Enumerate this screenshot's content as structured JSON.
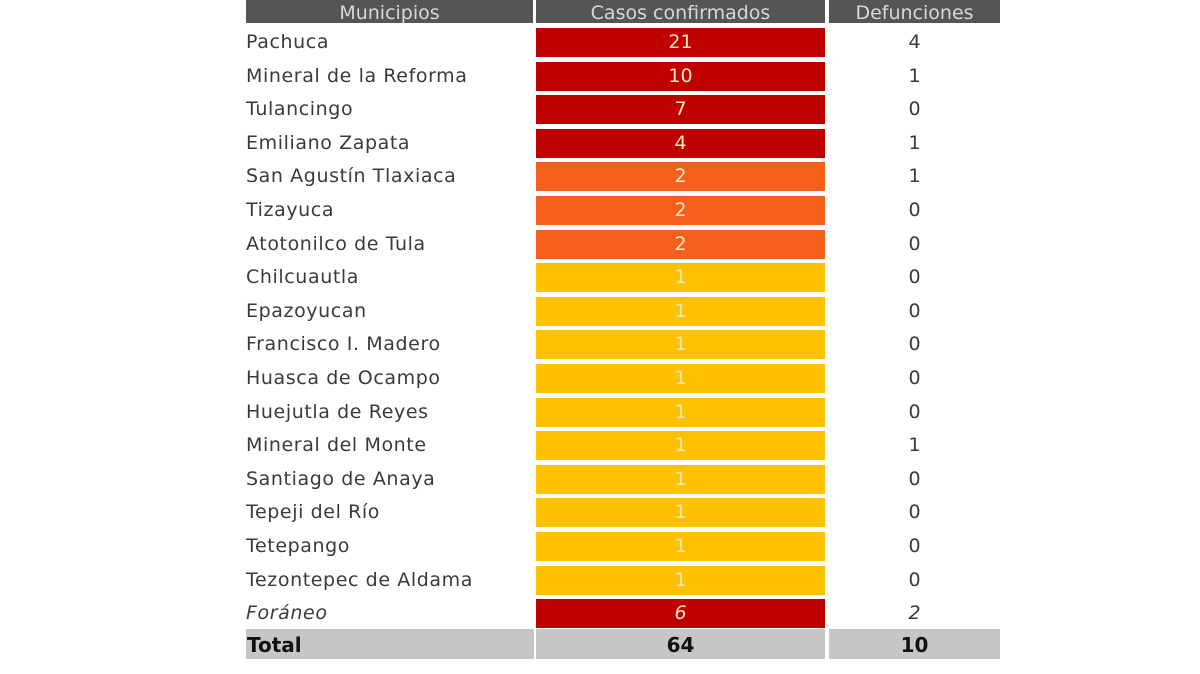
{
  "headers": {
    "municipio": "Municipios",
    "casos": "Casos confirmados",
    "defunciones": "Defunciones"
  },
  "colors": {
    "red": "#c00000",
    "orange": "#f4601c",
    "yellow": "#ffc000"
  },
  "rows": [
    {
      "name": "Pachuca",
      "cases": "21",
      "deaths": "4",
      "level": "red"
    },
    {
      "name": "Mineral de la Reforma",
      "cases": "10",
      "deaths": "1",
      "level": "red"
    },
    {
      "name": "Tulancingo",
      "cases": "7",
      "deaths": "0",
      "level": "red"
    },
    {
      "name": "Emiliano Zapata",
      "cases": "4",
      "deaths": "1",
      "level": "red"
    },
    {
      "name": "San Agustín Tlaxiaca",
      "cases": "2",
      "deaths": "1",
      "level": "orange"
    },
    {
      "name": "Tizayuca",
      "cases": "2",
      "deaths": "0",
      "level": "orange"
    },
    {
      "name": "Atotonilco de Tula",
      "cases": "2",
      "deaths": "0",
      "level": "orange"
    },
    {
      "name": "Chilcuautla",
      "cases": "1",
      "deaths": "0",
      "level": "yellow"
    },
    {
      "name": "Epazoyucan",
      "cases": "1",
      "deaths": "0",
      "level": "yellow"
    },
    {
      "name": "Francisco I. Madero",
      "cases": "1",
      "deaths": "0",
      "level": "yellow"
    },
    {
      "name": "Huasca de Ocampo",
      "cases": "1",
      "deaths": "0",
      "level": "yellow"
    },
    {
      "name": "Huejutla de Reyes",
      "cases": "1",
      "deaths": "0",
      "level": "yellow"
    },
    {
      "name": "Mineral del Monte",
      "cases": "1",
      "deaths": "1",
      "level": "yellow"
    },
    {
      "name": "Santiago de Anaya",
      "cases": "1",
      "deaths": "0",
      "level": "yellow"
    },
    {
      "name": "Tepeji del Río",
      "cases": "1",
      "deaths": "0",
      "level": "yellow"
    },
    {
      "name": "Tetepango",
      "cases": "1",
      "deaths": "0",
      "level": "yellow"
    },
    {
      "name": "Tezontepec de Aldama",
      "cases": "1",
      "deaths": "0",
      "level": "yellow"
    },
    {
      "name": "Foráneo",
      "cases": "6",
      "deaths": "2",
      "level": "red",
      "italic": true
    }
  ],
  "total": {
    "label": "Total",
    "cases": "64",
    "deaths": "10"
  }
}
